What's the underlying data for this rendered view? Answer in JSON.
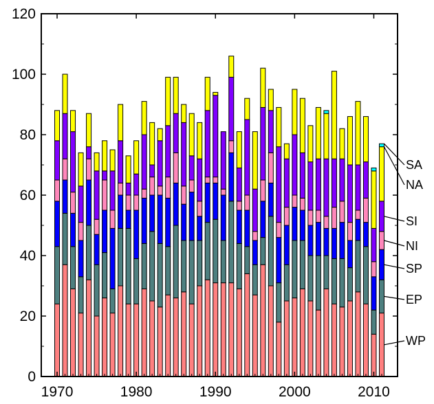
{
  "chart_data": {
    "type": "bar",
    "stacked": true,
    "title": "",
    "xlabel": "",
    "ylabel": "",
    "xlim": [
      1968,
      2013
    ],
    "ylim": [
      0,
      120
    ],
    "x_ticks": [
      1970,
      1980,
      1990,
      2000,
      2010
    ],
    "y_ticks": [
      0,
      20,
      40,
      60,
      80,
      100,
      120
    ],
    "grid": false,
    "legend": "series labels at right end",
    "x": [
      1970,
      1971,
      1972,
      1973,
      1974,
      1975,
      1976,
      1977,
      1978,
      1979,
      1980,
      1981,
      1982,
      1983,
      1984,
      1985,
      1986,
      1987,
      1988,
      1989,
      1990,
      1991,
      1992,
      1993,
      1994,
      1995,
      1996,
      1997,
      1998,
      1999,
      2000,
      2001,
      2002,
      2003,
      2004,
      2005,
      2006,
      2007,
      2008,
      2009,
      2010,
      2011
    ],
    "series": [
      {
        "name": "WP",
        "color": "#ff8080",
        "values": [
          24,
          37,
          29,
          21,
          32,
          20,
          26,
          21,
          30,
          24,
          24,
          29,
          25,
          23,
          27,
          26,
          28,
          24,
          30,
          32,
          31,
          31,
          31,
          29,
          34,
          27,
          37,
          30,
          18,
          25,
          26,
          29,
          25,
          22,
          29,
          24,
          23,
          25,
          28,
          24,
          14,
          21
        ]
      },
      {
        "name": "EP",
        "color": "#4e8080",
        "values": [
          19,
          17,
          14,
          12,
          18,
          17,
          15,
          8,
          19,
          25,
          15,
          15,
          23,
          21,
          16,
          24,
          17,
          21,
          15,
          19,
          21,
          14,
          27,
          15,
          9,
          10,
          9,
          23,
          13,
          12,
          19,
          16,
          15,
          18,
          11,
          15,
          16,
          11,
          17,
          19,
          8,
          11
        ]
      },
      {
        "name": "SP",
        "color": "#0000ff",
        "values": [
          15,
          11,
          11,
          12,
          15,
          10,
          14,
          20,
          11,
          6,
          16,
          15,
          12,
          16,
          16,
          14,
          12,
          16,
          8,
          13,
          12,
          15,
          16,
          11,
          12,
          8,
          12,
          11,
          15,
          13,
          11,
          10,
          10,
          11,
          9,
          10,
          12,
          9,
          7,
          8,
          11,
          10
        ]
      },
      {
        "name": "NI",
        "color": "#ff88bb",
        "values": [
          7,
          7,
          7,
          6,
          7,
          5,
          10,
          6,
          4,
          5,
          5,
          3,
          6,
          3,
          7,
          10,
          6,
          4,
          5,
          2,
          2,
          2,
          4,
          3,
          5,
          3,
          7,
          10,
          5,
          6,
          4,
          4,
          5,
          4,
          4,
          7,
          7,
          6,
          3,
          8,
          5,
          6
        ]
      },
      {
        "name": "SI",
        "color": "#8000ff",
        "values": [
          13,
          15,
          20,
          12,
          4,
          16,
          3,
          13,
          14,
          4,
          7,
          18,
          4,
          15,
          17,
          13,
          21,
          8,
          14,
          22,
          27,
          19,
          21,
          11,
          25,
          14,
          24,
          14,
          25,
          16,
          20,
          15,
          16,
          17,
          19,
          16,
          14,
          19,
          15,
          12,
          11,
          10
        ]
      },
      {
        "name": "NA",
        "color": "#ffff00",
        "values": [
          10,
          13,
          7,
          11,
          11,
          6,
          10,
          7,
          12,
          9,
          11,
          11,
          14,
          4,
          16,
          12,
          6,
          14,
          12,
          11,
          1,
          0,
          7,
          12,
          7,
          19,
          13,
          7,
          13,
          5,
          15,
          18,
          12,
          17,
          15,
          29,
          10,
          16,
          21,
          15,
          19,
          18
        ]
      },
      {
        "name": "SA",
        "color": "#00ffff",
        "values": [
          0,
          0,
          0,
          0,
          0,
          0,
          0,
          0,
          0,
          0,
          0,
          0,
          0,
          0,
          0,
          0,
          0,
          0,
          0,
          0,
          0,
          0,
          0,
          0,
          0,
          0,
          0,
          0,
          0,
          0,
          0,
          0,
          0,
          0,
          1,
          0,
          0,
          0,
          0,
          0,
          1,
          1
        ]
      }
    ]
  }
}
